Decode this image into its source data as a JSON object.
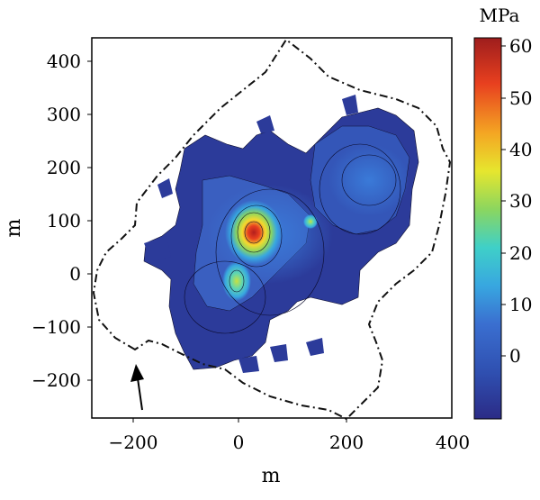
{
  "chart_data": {
    "type": "heatmap",
    "title": "",
    "xlabel": "m",
    "ylabel": "m",
    "xlim": [
      -275,
      400
    ],
    "ylim": [
      -270,
      440
    ],
    "x_ticks": [
      -200,
      0,
      200,
      400
    ],
    "y_ticks": [
      400,
      300,
      200,
      100,
      0,
      -100,
      -200
    ],
    "colorbar": {
      "label": "MPa",
      "range": [
        -5,
        60
      ],
      "ticks": [
        0,
        10,
        20,
        30,
        40,
        50,
        60
      ],
      "colormap": [
        "#2b2b86",
        "#2f4fb0",
        "#3a6fd0",
        "#38a7e0",
        "#3fd0c8",
        "#8bd65f",
        "#e6e62e",
        "#f4a623",
        "#e8401f",
        "#9e1d1d"
      ]
    },
    "annotations": [
      "arrow pointing north-northwest near (-190, -220)",
      "dash-dot boundary outline"
    ],
    "field_samples": [
      {
        "x": 20,
        "y": 80,
        "value": 58
      },
      {
        "x": 30,
        "y": 90,
        "value": 45
      },
      {
        "x": 40,
        "y": 70,
        "value": 30
      },
      {
        "x": 0,
        "y": -20,
        "value": 28
      },
      {
        "x": 50,
        "y": 130,
        "value": 15
      },
      {
        "x": 150,
        "y": 80,
        "value": 12
      },
      {
        "x": 250,
        "y": 150,
        "value": 7
      },
      {
        "x": -50,
        "y": -80,
        "value": 6
      },
      {
        "x": 100,
        "y": 150,
        "value": 4
      }
    ]
  }
}
